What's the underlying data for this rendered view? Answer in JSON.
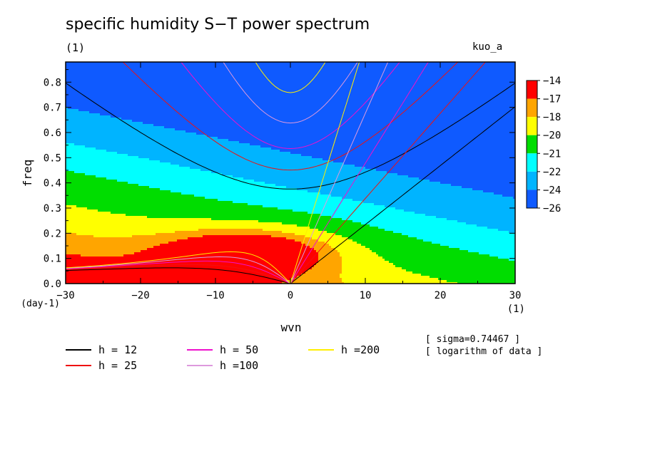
{
  "figure": {
    "title": "specific humidity S−T power spectrum",
    "subtitle": "(1)",
    "run_label": "kuo_a",
    "notes": [
      "[ sigma=0.74467 ]",
      "[ logarithm of data ]"
    ]
  },
  "chart_data": {
    "type": "heatmap",
    "xlabel": "wvn",
    "ylabel": "freq",
    "x_unit_label": "(1)",
    "y_unit_label": "(day-1)",
    "xlim": [
      -30,
      30
    ],
    "ylim": [
      0,
      0.88
    ],
    "xticks": [
      -30,
      -20,
      -10,
      0,
      10,
      20,
      30
    ],
    "xtick_labels": [
      "−30",
      "−20",
      "−10",
      "0",
      "10",
      "20",
      "30"
    ],
    "yticks": [
      0,
      0.1,
      0.2,
      0.3,
      0.4,
      0.5,
      0.6,
      0.7,
      0.8
    ],
    "ytick_labels": [
      "0.0",
      "0.1",
      "0.2",
      "0.3",
      "0.4",
      "0.5",
      "0.6",
      "0.7",
      "0.8"
    ],
    "colorbar": {
      "labels": [
        "−14",
        "−17",
        "−18",
        "−20",
        "−21",
        "−22",
        "−24",
        "−26"
      ],
      "levels": [
        -14,
        -17,
        -18,
        -20,
        -21,
        -22,
        -24,
        -26
      ],
      "colors": [
        "#ff0000",
        "#ffa500",
        "#ffff00",
        "#00dd00",
        "#00ffff",
        "#00b4ff",
        "#0f5aff"
      ]
    },
    "dispersion_curves": [
      {
        "label": "h = 12",
        "h": 12,
        "color": "#000000"
      },
      {
        "label": "h = 25",
        "h": 25,
        "color": "#ee1111"
      },
      {
        "label": "h = 50",
        "h": 50,
        "color": "#ee11cc"
      },
      {
        "label": "h =100",
        "h": 100,
        "color": "#dd99dd"
      },
      {
        "label": "h =200",
        "h": 200,
        "color": "#ffee00"
      }
    ]
  }
}
